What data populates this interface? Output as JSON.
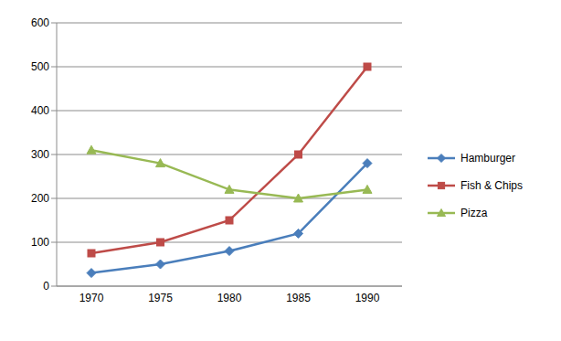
{
  "chart_data": {
    "type": "line",
    "categories": [
      "1970",
      "1975",
      "1980",
      "1985",
      "1990"
    ],
    "series": [
      {
        "name": "Hamburger",
        "color": "#4a7ebb",
        "marker": "diamond",
        "values": [
          30,
          50,
          80,
          120,
          280
        ]
      },
      {
        "name": "Fish & Chips",
        "color": "#be4b48",
        "marker": "square",
        "values": [
          75,
          100,
          150,
          300,
          500
        ]
      },
      {
        "name": "Pizza",
        "color": "#98b954",
        "marker": "triangle",
        "values": [
          310,
          280,
          220,
          200,
          220
        ]
      }
    ],
    "ylim": [
      0,
      600
    ],
    "yticks": [
      0,
      100,
      200,
      300,
      400,
      500,
      600
    ],
    "grid": true,
    "legend": "right"
  }
}
